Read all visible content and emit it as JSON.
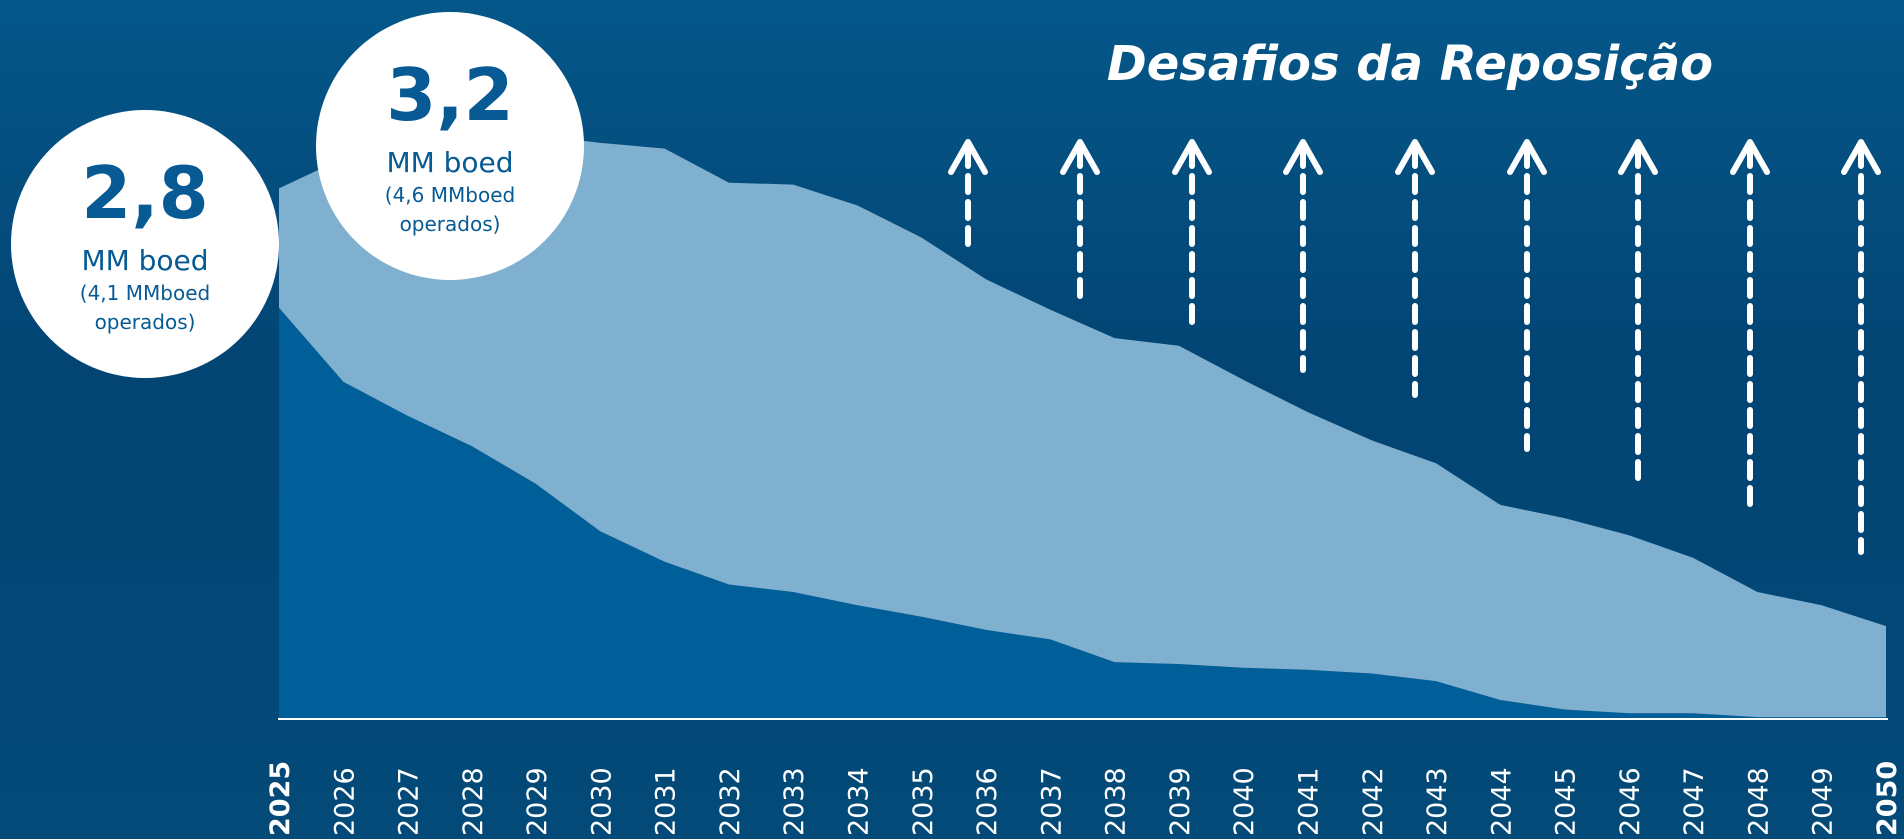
{
  "chart_data": {
    "type": "area",
    "title": "Desafios da Reposição",
    "stacked": true,
    "categories": [
      "2025",
      "2026",
      "2027",
      "2028",
      "2029",
      "2030",
      "2031",
      "2032",
      "2033",
      "2034",
      "2035",
      "2036",
      "2037",
      "2038",
      "2039",
      "2040",
      "2041",
      "2042",
      "2043",
      "2044",
      "2045",
      "2046",
      "2047",
      "2048",
      "2049",
      "2050"
    ],
    "series": [
      {
        "color": "#005f98",
        "values": [
          2.17,
          1.78,
          1.6,
          1.44,
          1.24,
          0.99,
          0.83,
          0.71,
          0.67,
          0.6,
          0.54,
          0.47,
          0.42,
          0.3,
          0.29,
          0.27,
          0.26,
          0.24,
          0.2,
          0.1,
          0.05,
          0.03,
          0.03,
          0.01,
          0.01,
          0.01
        ]
      },
      {
        "color": "#80b0cf",
        "values": [
          0.63,
          1.18,
          1.44,
          1.64,
          1.84,
          2.05,
          2.18,
          2.12,
          2.15,
          2.11,
          2.0,
          1.85,
          1.74,
          1.71,
          1.68,
          1.52,
          1.36,
          1.23,
          1.15,
          1.03,
          1.01,
          0.94,
          0.82,
          0.66,
          0.59,
          0.48
        ]
      }
    ],
    "ylim": [
      0,
      3.5
    ],
    "annotations": [
      {
        "value": "2,8",
        "unit": "MM boed",
        "note": [
          "(4,1 MMboed",
          "operados)"
        ]
      },
      {
        "value": "3,2",
        "unit": "MM boed",
        "note": [
          "(4,6 MMboed",
          "operados)"
        ]
      }
    ]
  }
}
